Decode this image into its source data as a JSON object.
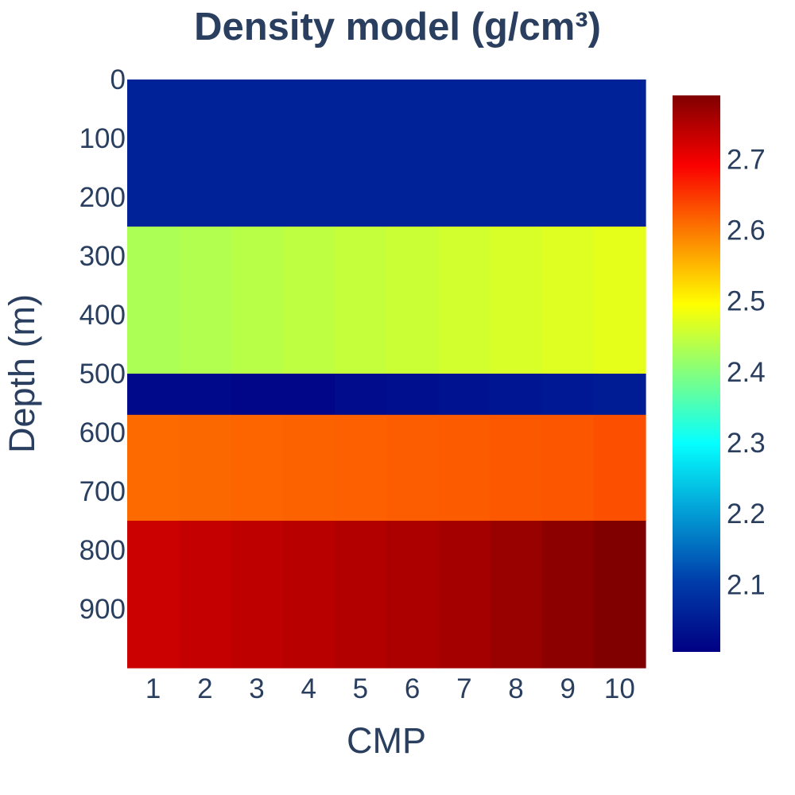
{
  "chart_data": {
    "type": "heatmap",
    "title": "Density model (g/cm³)",
    "xlabel": "CMP",
    "ylabel": "Depth (m)",
    "x": [
      1,
      2,
      3,
      4,
      5,
      6,
      7,
      8,
      9,
      10
    ],
    "x_tick_labels": [
      "1",
      "2",
      "3",
      "4",
      "5",
      "6",
      "7",
      "8",
      "9",
      "10"
    ],
    "y_tick_labels": [
      "0",
      "100",
      "200",
      "300",
      "400",
      "500",
      "600",
      "700",
      "800",
      "900"
    ],
    "y_ticks": [
      0,
      100,
      200,
      300,
      400,
      500,
      600,
      700,
      800,
      900
    ],
    "ylim": [
      0,
      1000
    ],
    "y_reversed": true,
    "layers": [
      {
        "top": 0,
        "bottom": 250,
        "values": [
          2.06,
          2.06,
          2.06,
          2.06,
          2.06,
          2.06,
          2.06,
          2.06,
          2.06,
          2.06
        ]
      },
      {
        "top": 250,
        "bottom": 500,
        "values": [
          2.43,
          2.435,
          2.44,
          2.445,
          2.45,
          2.455,
          2.46,
          2.465,
          2.47,
          2.475
        ]
      },
      {
        "top": 500,
        "bottom": 570,
        "values": [
          2.02,
          2.02,
          2.015,
          2.015,
          2.025,
          2.03,
          2.035,
          2.04,
          2.045,
          2.05
        ]
      },
      {
        "top": 570,
        "bottom": 750,
        "values": [
          2.61,
          2.612,
          2.614,
          2.616,
          2.618,
          2.62,
          2.622,
          2.624,
          2.626,
          2.63
        ]
      },
      {
        "top": 750,
        "bottom": 1000,
        "values": [
          2.73,
          2.735,
          2.74,
          2.745,
          2.75,
          2.755,
          2.76,
          2.77,
          2.78,
          2.79
        ]
      }
    ],
    "colorscale": "Jet",
    "zmin": 2.005,
    "zmax": 2.79,
    "colorbar_ticks": [
      2.1,
      2.2,
      2.3,
      2.4,
      2.5,
      2.6,
      2.7
    ],
    "colorbar_tick_labels": [
      "2.1",
      "2.2",
      "2.3",
      "2.4",
      "2.5",
      "2.6",
      "2.7"
    ],
    "colors": [
      "#000083",
      "#003caa",
      "#05ffff",
      "#ffff00",
      "#fa0000",
      "#800000"
    ],
    "text_color": "#2a3f5f"
  }
}
